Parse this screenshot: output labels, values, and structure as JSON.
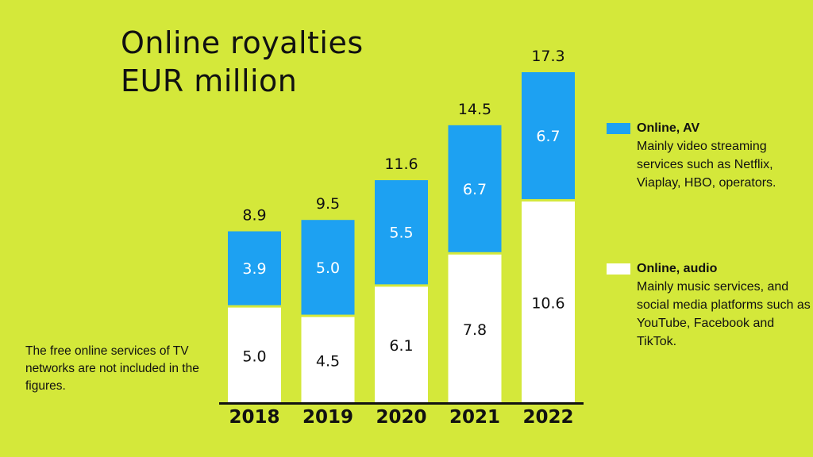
{
  "title": {
    "line1": "Online royalties",
    "line2": "EUR million"
  },
  "footnote": "The free online services of TV networks are not included in the figures.",
  "legend": [
    {
      "name": "Online, AV",
      "color": "#1da1f2",
      "description": "Mainly video streaming services such as Netflix, Viaplay, HBO, operators."
    },
    {
      "name": "Online, audio",
      "color": "#ffffff",
      "description": "Mainly music services, and social media platforms such as YouTube, Facebook and TikTok."
    }
  ],
  "chart_data": {
    "type": "bar",
    "stacked": true,
    "title": "Online royalties EUR million",
    "categories": [
      "2018",
      "2019",
      "2020",
      "2021",
      "2022"
    ],
    "series": [
      {
        "name": "Online, audio",
        "color": "#ffffff",
        "values": [
          5.0,
          4.5,
          6.1,
          7.8,
          10.6
        ]
      },
      {
        "name": "Online, AV",
        "color": "#1da1f2",
        "values": [
          3.9,
          5.0,
          5.5,
          6.7,
          6.7
        ]
      }
    ],
    "totals": [
      8.9,
      9.5,
      11.6,
      14.5,
      17.3
    ],
    "value_labels": {
      "audio": [
        "5.0",
        "4.5",
        "6.1",
        "7.8",
        "10.6"
      ],
      "av": [
        "3.9",
        "5.0",
        "5.5",
        "6.7",
        "6.7"
      ],
      "totals": [
        "8.9",
        "9.5",
        "11.6",
        "14.5",
        "17.3"
      ]
    },
    "ylim": [
      0,
      17.3
    ],
    "grid": false,
    "legend_position": "right"
  }
}
